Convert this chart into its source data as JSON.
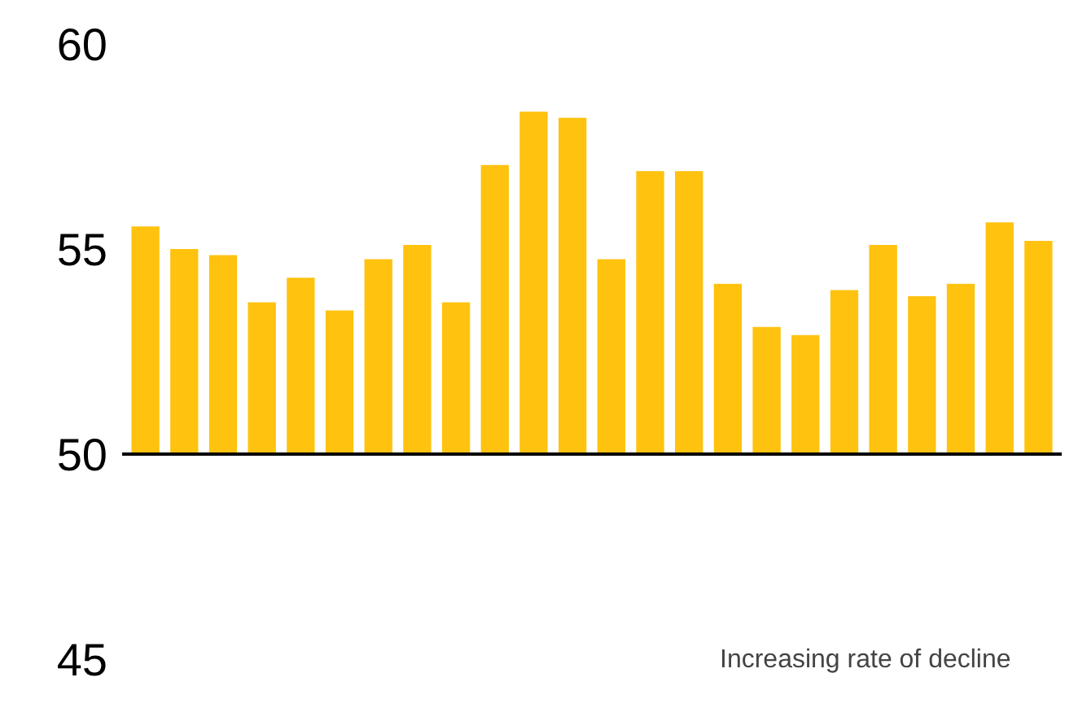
{
  "chart_data": {
    "type": "bar",
    "categories": [
      null,
      null,
      null,
      null,
      null,
      null,
      null,
      null,
      null,
      null,
      null,
      null,
      null,
      null,
      null,
      null,
      null,
      null,
      null,
      null,
      null,
      null,
      null,
      null
    ],
    "values": [
      5.55,
      5.0,
      4.85,
      3.7,
      4.3,
      3.5,
      4.75,
      5.1,
      3.7,
      7.05,
      8.35,
      8.2,
      4.75,
      6.9,
      6.9,
      4.15,
      3.1,
      2.9,
      4.0,
      5.1,
      3.85,
      4.15,
      5.65,
      5.2
    ],
    "base": [
      50,
      50,
      50,
      50,
      50,
      50,
      50,
      50,
      50,
      50,
      50,
      50,
      50,
      50,
      50,
      50,
      50,
      50,
      50,
      50,
      50,
      50,
      50,
      50
    ],
    "color": "#ffc20e",
    "ylim": [
      45,
      60
    ],
    "yticks": [
      45,
      50,
      55,
      60
    ],
    "tick_labels": "y",
    "ref_lines": [
      {
        "axis": "y",
        "value": 50,
        "color": "#000000"
      }
    ],
    "annotations": [
      "Increasing rate of decline"
    ]
  }
}
